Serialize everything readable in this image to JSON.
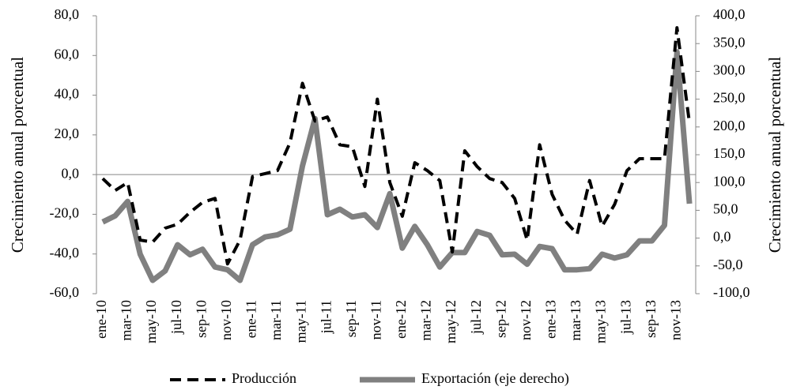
{
  "chart_data": {
    "type": "line",
    "y_label": "Crecimiento anual porcentual",
    "y2_label": "Crecimiento anual porcentual",
    "categories": [
      "ene-10",
      null,
      "mar-10",
      null,
      "may-10",
      null,
      "jul-10",
      null,
      "sep-10",
      null,
      "nov-10",
      null,
      "ene-11",
      null,
      "mar-11",
      null,
      "may-11",
      null,
      "jul-11",
      null,
      "sep-11",
      null,
      "nov-11",
      null,
      "ene-12",
      null,
      "mar-12",
      null,
      "may-12",
      null,
      "jul-12",
      null,
      "sep-12",
      null,
      "nov-12",
      null,
      "ene-13",
      null,
      "mar-13",
      null,
      "may-13",
      null,
      "jul-13",
      null,
      "sep-13",
      null,
      "nov-13",
      null
    ],
    "series": [
      {
        "name": "Producción",
        "color": "#000000",
        "dash": true,
        "values": [
          -2,
          -8,
          -4,
          -33,
          -34,
          -27,
          -25,
          -19,
          -14,
          -12,
          -45,
          -33,
          -1,
          0.5,
          2,
          16,
          46,
          27,
          29,
          15,
          14,
          -6,
          38,
          -4,
          -21,
          6,
          2,
          -3,
          -39,
          12,
          4,
          -2,
          -4,
          -12,
          -33,
          15,
          -10,
          -23,
          -30,
          -3,
          -26,
          -15,
          2,
          8,
          8,
          8,
          74,
          26
        ]
      },
      {
        "name": "Exportación (eje derecho)",
        "color": "#808080",
        "axis": "y2",
        "values": [
          29,
          40,
          66,
          -29,
          -76,
          -59,
          -12,
          -30,
          -20,
          -52,
          -57,
          -76,
          -12,
          2,
          6,
          16,
          130,
          215,
          42,
          52,
          38,
          42,
          19,
          80,
          -18,
          21,
          -12,
          -52,
          -26,
          -26,
          12,
          5,
          -30,
          -29,
          -47,
          -15,
          -19,
          -57,
          -57,
          -55,
          -29,
          -36,
          -30,
          -5,
          -5,
          23,
          335,
          62
        ]
      }
    ],
    "ylim": [
      -60,
      80
    ],
    "yticks": [
      {
        "value": -60,
        "label": "-60,0"
      },
      {
        "value": -40,
        "label": "-40,0"
      },
      {
        "value": -20,
        "label": "-20,0"
      },
      {
        "value": 0,
        "label": "0,0"
      },
      {
        "value": 20,
        "label": "20,0"
      },
      {
        "value": 40,
        "label": "40,0"
      },
      {
        "value": 60,
        "label": "60,0"
      },
      {
        "value": 80,
        "label": "80,0"
      }
    ],
    "y2lim": [
      -100,
      400
    ],
    "y2ticks": [
      {
        "value": -100,
        "label": "-100,0"
      },
      {
        "value": -50,
        "label": "-50,0"
      },
      {
        "value": 0,
        "label": "0,0"
      },
      {
        "value": 50,
        "label": "50,0"
      },
      {
        "value": 100,
        "label": "100,0"
      },
      {
        "value": 150,
        "label": "150,0"
      },
      {
        "value": 200,
        "label": "200,0"
      },
      {
        "value": 250,
        "label": "250,0"
      },
      {
        "value": 300,
        "label": "300,0"
      },
      {
        "value": 350,
        "label": "350,0"
      },
      {
        "value": 400,
        "label": "400,0"
      }
    ],
    "grid": false,
    "legend": "bottom"
  }
}
